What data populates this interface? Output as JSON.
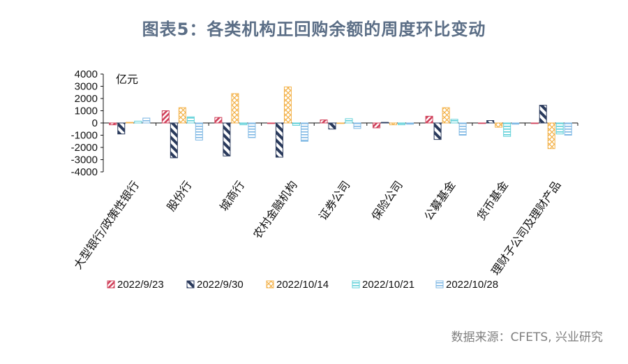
{
  "title": "图表5：各类机构正回购余额的周度环比变动",
  "source": "数据来源：CFETS, 兴业研究",
  "colors": {
    "s1": "#d0405a",
    "s2": "#2a3a5c",
    "s3": "#f3b24a",
    "s4": "#5fd0d8",
    "s5": "#7fb8e4"
  },
  "chart_data": {
    "type": "bar",
    "unit_label": "亿元",
    "ylim": [
      -4000,
      4000
    ],
    "yticks": [
      4000,
      3000,
      2000,
      1000,
      0,
      -1000,
      -2000,
      -3000,
      -4000
    ],
    "categories": [
      "大型银行/政策性银行",
      "股份行",
      "城商行",
      "农村金融机构",
      "证券公司",
      "保险公司",
      "公募基金",
      "货币基金",
      "理财子公司及理财产品"
    ],
    "series": [
      {
        "name": "2022/9/23",
        "values": [
          -150,
          1000,
          450,
          -50,
          250,
          -400,
          550,
          0,
          -50
        ]
      },
      {
        "name": "2022/9/30",
        "values": [
          -900,
          -2850,
          -2700,
          -2800,
          -500,
          50,
          -1350,
          200,
          1450
        ]
      },
      {
        "name": "2022/10/14",
        "values": [
          50,
          1250,
          2400,
          2950,
          0,
          -150,
          1250,
          -350,
          -2100
        ]
      },
      {
        "name": "2022/10/21",
        "values": [
          150,
          500,
          -150,
          -200,
          350,
          -150,
          300,
          -1100,
          -900
        ]
      },
      {
        "name": "2022/10/28",
        "values": [
          400,
          -1400,
          -1200,
          -1500,
          -450,
          -100,
          -1000,
          -100,
          -1000
        ]
      }
    ],
    "legend_position": "bottom",
    "grid": false
  }
}
